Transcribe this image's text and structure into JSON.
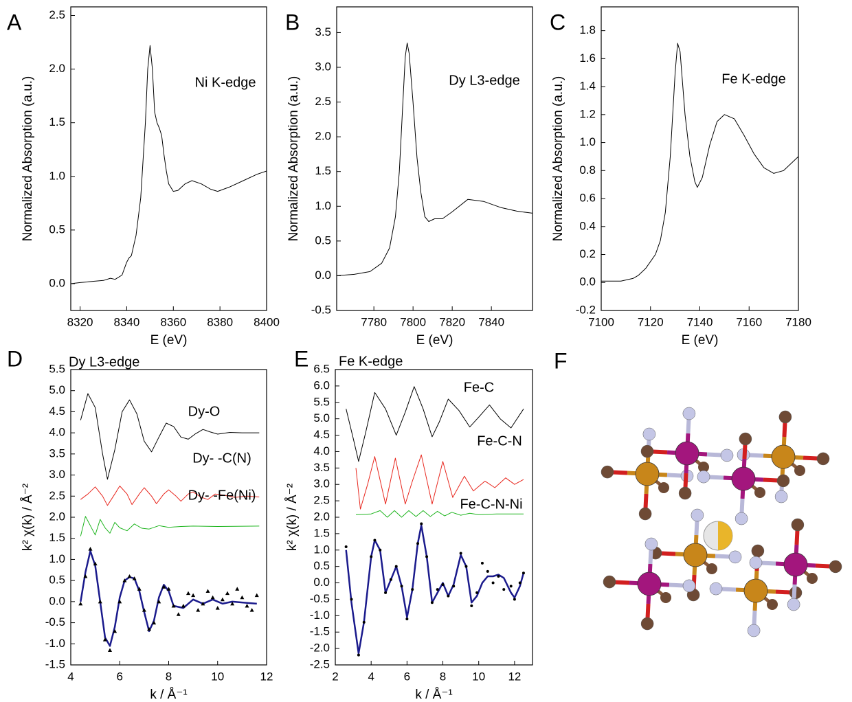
{
  "chart_data": [
    {
      "type": "line",
      "panel_label": "A",
      "annotation": "Ni K-edge",
      "xlabel": "E (eV)",
      "ylabel": "Normalized Absorption (a.u.)",
      "xlim": [
        8316,
        8400
      ],
      "ylim": [
        -0.25,
        2.58
      ],
      "xticks": [
        8320,
        8340,
        8360,
        8380,
        8400
      ],
      "yticks": [
        {
          "value": 0,
          "label": "0.0"
        },
        0.5,
        {
          "value": 1,
          "label": "1.0"
        },
        1.5,
        {
          "value": 2,
          "label": "2.0"
        },
        2.5
      ],
      "series": [
        {
          "color": "#000000",
          "x": [
            8316,
            8320,
            8325,
            8330,
            8333,
            8335,
            8338,
            8340,
            8341,
            8342,
            8344,
            8346,
            8348,
            8349,
            8350,
            8351,
            8352,
            8353,
            8354,
            8355,
            8356,
            8357,
            8358,
            8360,
            8362,
            8365,
            8368,
            8372,
            8376,
            8379,
            8384,
            8390,
            8396,
            8400
          ],
          "values": [
            0.0,
            0.01,
            0.02,
            0.03,
            0.05,
            0.04,
            0.08,
            0.2,
            0.24,
            0.26,
            0.45,
            0.8,
            1.5,
            2.0,
            2.22,
            2.0,
            1.6,
            1.5,
            1.45,
            1.38,
            1.2,
            1.05,
            0.93,
            0.86,
            0.87,
            0.93,
            0.96,
            0.93,
            0.88,
            0.86,
            0.9,
            0.96,
            1.02,
            1.05
          ]
        }
      ]
    },
    {
      "type": "line",
      "panel_label": "B",
      "annotation": "Dy L3-edge",
      "xlabel": "E (eV)",
      "ylabel": "Normalized Absorption (a.u.)",
      "xlim": [
        7761,
        7861
      ],
      "ylim": [
        -0.5,
        3.87
      ],
      "xticks": [
        7780,
        7800,
        7820,
        7840
      ],
      "yticks": [
        -0.5,
        {
          "value": 0,
          "label": "0.0"
        },
        0.5,
        {
          "value": 1,
          "label": "1.0"
        },
        1.5,
        {
          "value": 2,
          "label": "2.0"
        },
        2.5,
        {
          "value": 3,
          "label": "3.0"
        },
        3.5
      ],
      "series": [
        {
          "color": "#000000",
          "x": [
            7761,
            7770,
            7778,
            7784,
            7788,
            7791,
            7793,
            7795,
            7796,
            7797,
            7798,
            7800,
            7802,
            7804,
            7806,
            7808,
            7811,
            7815,
            7820,
            7828,
            7836,
            7845,
            7853,
            7861
          ],
          "values": [
            0.0,
            0.02,
            0.06,
            0.18,
            0.4,
            0.85,
            1.5,
            2.6,
            3.15,
            3.35,
            3.2,
            2.5,
            1.7,
            1.2,
            0.85,
            0.78,
            0.82,
            0.82,
            0.92,
            1.1,
            1.07,
            0.98,
            0.93,
            0.9
          ]
        }
      ]
    },
    {
      "type": "line",
      "panel_label": "C",
      "annotation": "Fe K-edge",
      "xlabel": "E (eV)",
      "ylabel": "Normalized Absorption (a.u.)",
      "xlim": [
        7100,
        7180
      ],
      "ylim": [
        -0.2,
        1.97
      ],
      "xticks": [
        7100,
        7120,
        7140,
        7160,
        7180
      ],
      "yticks": [
        -0.2,
        {
          "value": 0,
          "label": "0.0"
        },
        0.2,
        0.4,
        0.6,
        0.8,
        {
          "value": 1,
          "label": "1.0"
        },
        1.2,
        1.4,
        1.6,
        1.8
      ],
      "series": [
        {
          "color": "#000000",
          "x": [
            7100,
            7108,
            7113,
            7115,
            7118,
            7120,
            7122,
            7124,
            7126,
            7128,
            7130,
            7131,
            7132,
            7134,
            7136,
            7138,
            7139,
            7141,
            7144,
            7147,
            7150,
            7154,
            7158,
            7162,
            7166,
            7170,
            7174,
            7180
          ],
          "values": [
            0.01,
            0.01,
            0.03,
            0.05,
            0.1,
            0.15,
            0.2,
            0.3,
            0.5,
            0.9,
            1.5,
            1.71,
            1.65,
            1.2,
            0.9,
            0.72,
            0.68,
            0.75,
            0.98,
            1.15,
            1.2,
            1.17,
            1.05,
            0.92,
            0.82,
            0.78,
            0.8,
            0.9
          ]
        }
      ]
    },
    {
      "type": "line",
      "panel_label": "D",
      "title": "Dy L3-edge",
      "xlabel": "k / Å⁻¹",
      "ylabel": "k² χ(k) / Å⁻²",
      "xlim": [
        4,
        12
      ],
      "ylim": [
        -1.5,
        5.5
      ],
      "xticks": [
        4,
        6,
        8,
        10,
        12
      ],
      "yticks": [
        -1.5,
        {
          "value": -1,
          "label": "-1.0"
        },
        -0.5,
        {
          "value": 0,
          "label": "0.0"
        },
        0.5,
        {
          "value": 1,
          "label": "1.0"
        },
        1.5,
        {
          "value": 2,
          "label": "2.0"
        },
        2.5,
        {
          "value": 3,
          "label": "3.0"
        },
        3.5,
        {
          "value": 4,
          "label": "4.0"
        },
        4.5,
        {
          "value": 5,
          "label": "5.0"
        },
        5.5
      ],
      "series": [
        {
          "name": "Dy-O",
          "color": "#000000",
          "x": [
            4.4,
            4.7,
            5.0,
            5.3,
            5.5,
            5.8,
            6.1,
            6.4,
            6.7,
            7.0,
            7.3,
            7.6,
            7.9,
            8.2,
            8.5,
            8.8,
            9.1,
            9.4,
            9.7,
            10.0,
            10.5,
            11.0,
            11.7
          ],
          "values": [
            4.3,
            4.93,
            4.6,
            3.5,
            2.9,
            3.6,
            4.5,
            4.78,
            4.45,
            3.8,
            3.55,
            3.9,
            4.23,
            4.15,
            3.9,
            3.85,
            3.98,
            4.08,
            4.02,
            3.97,
            4.01,
            4.0,
            4.0
          ]
        },
        {
          "name": "Dy- -C(N)",
          "color": "#e8271e",
          "x": [
            4.4,
            4.7,
            5.0,
            5.3,
            5.5,
            5.8,
            6.0,
            6.3,
            6.5,
            6.8,
            7.0,
            7.3,
            7.5,
            7.8,
            8.0,
            8.3,
            8.5,
            8.8,
            9.0,
            9.3,
            9.6,
            9.9,
            10.3,
            10.7,
            11.2,
            11.7
          ],
          "values": [
            2.42,
            2.55,
            2.72,
            2.5,
            2.28,
            2.55,
            2.74,
            2.55,
            2.3,
            2.55,
            2.7,
            2.5,
            2.32,
            2.55,
            2.65,
            2.5,
            2.38,
            2.55,
            2.6,
            2.48,
            2.42,
            2.55,
            2.52,
            2.47,
            2.5,
            2.48
          ]
        },
        {
          "name": "Dy- -Fe(Ni)",
          "color": "#1fb51f",
          "x": [
            4.4,
            4.6,
            4.8,
            5.0,
            5.2,
            5.4,
            5.6,
            5.8,
            6.0,
            6.3,
            6.6,
            6.9,
            7.2,
            7.6,
            8.0,
            8.5,
            9.0,
            10.0,
            11.7
          ],
          "values": [
            1.55,
            2.02,
            1.8,
            1.58,
            1.95,
            1.75,
            1.62,
            1.88,
            1.75,
            1.68,
            1.84,
            1.74,
            1.72,
            1.8,
            1.76,
            1.78,
            1.79,
            1.78,
            1.79
          ]
        },
        {
          "color": "#1a1a8c",
          "x": [
            4.4,
            4.6,
            4.8,
            5.0,
            5.2,
            5.4,
            5.6,
            5.8,
            6.0,
            6.2,
            6.4,
            6.6,
            6.8,
            7.0,
            7.2,
            7.4,
            7.6,
            7.8,
            8.0,
            8.2,
            8.6,
            9.0,
            9.4,
            9.8,
            10.2,
            10.6,
            11.0,
            11.6
          ],
          "values": [
            0.0,
            0.7,
            1.2,
            0.85,
            0.0,
            -0.85,
            -1.05,
            -0.6,
            0.1,
            0.5,
            0.58,
            0.55,
            0.25,
            -0.25,
            -0.7,
            -0.45,
            0.1,
            0.4,
            0.25,
            -0.1,
            -0.15,
            0.05,
            -0.05,
            0.05,
            -0.05,
            0.0,
            -0.02,
            -0.05
          ]
        },
        {
          "color": "#000000",
          "marker": "triangle",
          "x": [
            4.4,
            4.6,
            4.8,
            5.0,
            5.2,
            5.4,
            5.6,
            5.8,
            6.0,
            6.2,
            6.4,
            6.6,
            6.8,
            7.0,
            7.2,
            7.4,
            7.6,
            7.8,
            8.0,
            8.2,
            8.4,
            8.6,
            8.8,
            9.0,
            9.2,
            9.4,
            9.6,
            9.8,
            10.0,
            10.2,
            10.4,
            10.6,
            10.8,
            11.0,
            11.2,
            11.4,
            11.6
          ],
          "values": [
            -0.05,
            0.6,
            1.25,
            0.9,
            0.0,
            -0.9,
            -1.15,
            -0.7,
            0.0,
            0.5,
            0.6,
            0.55,
            0.3,
            -0.2,
            -0.65,
            -0.5,
            0.0,
            0.35,
            0.3,
            -0.1,
            -0.3,
            -0.1,
            0.2,
            0.15,
            -0.2,
            -0.05,
            0.25,
            0.1,
            -0.15,
            0.05,
            0.2,
            -0.05,
            0.3,
            0.1,
            -0.1,
            -0.2,
            0.15
          ]
        }
      ]
    },
    {
      "type": "line",
      "panel_label": "E",
      "title": "Fe K-edge",
      "xlabel": "k / Å⁻¹",
      "ylabel": "k² χ(k) / Å⁻²",
      "xlim": [
        2,
        13
      ],
      "ylim": [
        -2.5,
        6.5
      ],
      "xticks": [
        2,
        4,
        6,
        8,
        10,
        12
      ],
      "yticks": [
        -2.5,
        {
          "value": -2,
          "label": "-2.0"
        },
        -1.5,
        {
          "value": -1,
          "label": "-1.0"
        },
        -0.5,
        {
          "value": 0,
          "label": "0.0"
        },
        0.5,
        {
          "value": 1,
          "label": "1.0"
        },
        1.5,
        {
          "value": 2,
          "label": "2.0"
        },
        2.5,
        {
          "value": 3,
          "label": "3.0"
        },
        3.5,
        {
          "value": 4,
          "label": "4.0"
        },
        4.5,
        {
          "value": 5,
          "label": "5.0"
        },
        5.5,
        {
          "value": 6,
          "label": "6.0"
        },
        6.5
      ],
      "series": [
        {
          "name": "Fe-C",
          "color": "#000000",
          "x": [
            2.6,
            3.0,
            3.3,
            3.7,
            4.2,
            4.8,
            5.4,
            5.9,
            6.4,
            6.9,
            7.4,
            7.8,
            8.3,
            8.9,
            9.5,
            10.0,
            10.6,
            11.2,
            11.8,
            12.5
          ],
          "values": [
            5.3,
            4.4,
            3.7,
            4.6,
            5.8,
            5.3,
            4.5,
            5.2,
            5.98,
            5.3,
            4.45,
            4.9,
            5.6,
            5.25,
            4.75,
            5.05,
            5.42,
            5.0,
            4.72,
            5.3
          ]
        },
        {
          "name": "Fe-C-N",
          "color": "#e8271e",
          "x": [
            3.15,
            3.4,
            3.8,
            4.2,
            4.8,
            5.35,
            5.9,
            6.3,
            6.8,
            7.4,
            8.0,
            8.55,
            9.2,
            9.7,
            10.35,
            10.9,
            11.5,
            12.0,
            12.5
          ],
          "values": [
            3.5,
            2.25,
            3.0,
            3.85,
            2.4,
            3.8,
            2.4,
            3.1,
            3.9,
            2.4,
            3.7,
            2.6,
            3.25,
            2.8,
            3.1,
            2.9,
            3.2,
            3.0,
            3.15
          ]
        },
        {
          "name": "Fe-C-N-Ni",
          "color": "#1fb51f",
          "x": [
            3.15,
            4.0,
            4.5,
            4.9,
            5.3,
            5.7,
            6.1,
            6.5,
            6.9,
            7.3,
            7.7,
            8.1,
            8.5,
            9.0,
            9.5,
            10.0,
            11.0,
            12.5
          ],
          "values": [
            2.08,
            2.1,
            2.2,
            2.0,
            2.2,
            2.0,
            2.2,
            2.02,
            2.2,
            2.02,
            2.18,
            2.04,
            2.15,
            2.06,
            2.12,
            2.08,
            2.1,
            2.1
          ]
        },
        {
          "color": "#1a1a8c",
          "x": [
            2.6,
            2.9,
            3.3,
            3.6,
            4.0,
            4.2,
            4.5,
            4.8,
            5.1,
            5.4,
            5.7,
            6.0,
            6.3,
            6.6,
            6.8,
            7.1,
            7.4,
            7.7,
            8.0,
            8.3,
            8.6,
            9.0,
            9.3,
            9.6,
            9.9,
            10.2,
            10.5,
            10.8,
            11.1,
            11.4,
            11.8,
            12.0,
            12.3,
            12.5
          ],
          "values": [
            1.0,
            -0.6,
            -2.15,
            -1.2,
            0.8,
            1.3,
            1.0,
            -0.3,
            0.1,
            0.5,
            -0.1,
            -1.05,
            -0.2,
            1.2,
            1.75,
            0.8,
            -0.6,
            -0.3,
            0.0,
            -0.4,
            -0.05,
            0.85,
            0.5,
            -0.6,
            -0.4,
            0.0,
            0.2,
            0.2,
            0.25,
            0.15,
            -0.3,
            -0.45,
            -0.1,
            0.3
          ]
        },
        {
          "color": "#000000",
          "marker": "circle",
          "x": [
            2.6,
            2.9,
            3.3,
            3.6,
            4.0,
            4.2,
            4.5,
            4.8,
            5.1,
            5.4,
            5.7,
            6.0,
            6.3,
            6.6,
            6.8,
            7.1,
            7.4,
            7.7,
            8.0,
            8.3,
            8.6,
            9.0,
            9.3,
            9.6,
            9.9,
            10.2,
            10.5,
            10.8,
            11.1,
            11.4,
            11.8,
            12.0,
            12.3,
            12.5
          ],
          "values": [
            1.1,
            -0.5,
            -2.2,
            -1.2,
            0.8,
            1.3,
            1.0,
            -0.3,
            0.1,
            0.5,
            -0.1,
            -1.1,
            -0.2,
            1.2,
            1.8,
            0.8,
            -0.6,
            -0.2,
            -0.05,
            -0.4,
            -0.1,
            0.9,
            0.5,
            -0.7,
            -0.3,
            0.6,
            0.35,
            0.0,
            0.2,
            -0.2,
            -0.1,
            -0.5,
            0.0,
            0.3
          ]
        }
      ]
    }
  ],
  "structure": {
    "panel_label": "F"
  }
}
